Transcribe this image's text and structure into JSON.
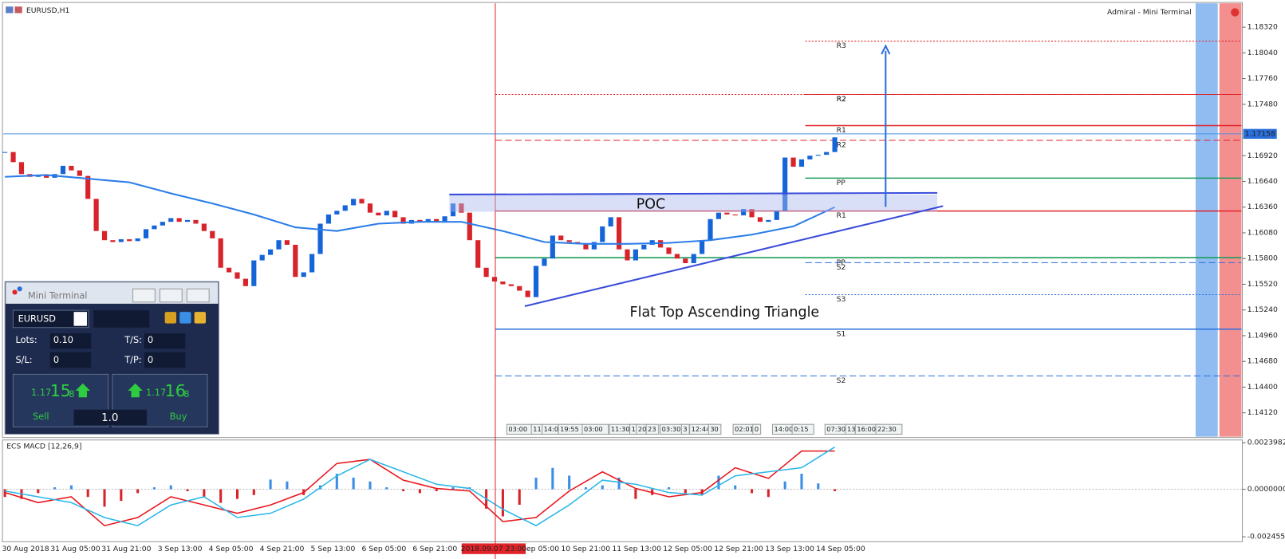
{
  "header": {
    "symbol": "EURUSD,H1",
    "broker": "Admiral - Mini Terminal"
  },
  "price_axis": {
    "ylim": [
      1.1386,
      1.1858
    ],
    "ticks": [
      {
        "value": 1.1832,
        "label": "1.18320"
      },
      {
        "value": 1.1804,
        "label": "1.18040"
      },
      {
        "value": 1.1776,
        "label": "1.17760"
      },
      {
        "value": 1.1748,
        "label": "1.17480"
      },
      {
        "value": 1.1692,
        "label": "1.16920"
      },
      {
        "value": 1.1664,
        "label": "1.16640"
      },
      {
        "value": 1.1636,
        "label": "1.16360"
      },
      {
        "value": 1.1608,
        "label": "1.16080"
      },
      {
        "value": 1.158,
        "label": "1.15800"
      },
      {
        "value": 1.1552,
        "label": "1.15520"
      },
      {
        "value": 1.1524,
        "label": "1.15240"
      },
      {
        "value": 1.1496,
        "label": "1.14960"
      },
      {
        "value": 1.1468,
        "label": "1.14680"
      },
      {
        "value": 1.144,
        "label": "1.14400"
      },
      {
        "value": 1.1412,
        "label": "1.14120"
      }
    ],
    "current": {
      "value": 1.17158,
      "label": "1.17158"
    }
  },
  "candles": {
    "up_color": "#1565d8",
    "down_color": "#d8232a",
    "closes": [
      1.1696,
      1.1685,
      1.1672,
      1.1669,
      1.1671,
      1.1668,
      1.1672,
      1.1681,
      1.1676,
      1.167,
      1.1645,
      1.161,
      1.16,
      1.1598,
      1.1601,
      1.1599,
      1.1602,
      1.1612,
      1.1616,
      1.162,
      1.1624,
      1.162,
      1.1622,
      1.1618,
      1.161,
      1.1602,
      1.157,
      1.1565,
      1.1558,
      1.155,
      1.1578,
      1.1584,
      1.159,
      1.16,
      1.1595,
      1.156,
      1.1565,
      1.1585,
      1.1618,
      1.1628,
      1.1632,
      1.1638,
      1.1645,
      1.164,
      1.163,
      1.1627,
      1.1632,
      1.1625,
      1.1618,
      1.1622,
      1.162,
      1.1623,
      1.162,
      1.1626,
      1.164,
      1.163,
      1.16,
      1.157,
      1.156,
      1.1555,
      1.1552,
      1.155,
      1.1545,
      1.1538,
      1.1572,
      1.158,
      1.1605,
      1.16,
      1.1598,
      1.1596,
      1.159,
      1.1598,
      1.1615,
      1.1625,
      1.159,
      1.1578,
      1.159,
      1.1595,
      1.16,
      1.1592,
      1.1585,
      1.158,
      1.1575,
      1.1585,
      1.16,
      1.1623,
      1.163,
      1.1628,
      1.1627,
      1.1634,
      1.1625,
      1.162,
      1.1622,
      1.1632,
      1.169,
      1.168,
      1.1688,
      1.1692,
      1.1693,
      1.1696,
      1.1712
    ]
  },
  "moving_average": {
    "color": "#2b7de9",
    "values": [
      1.1669,
      1.1671,
      1.1667,
      1.1663,
      1.1651,
      1.164,
      1.1628,
      1.1614,
      1.161,
      1.1618,
      1.162,
      1.162,
      1.161,
      1.1598,
      1.1596,
      1.1596,
      1.1597,
      1.16,
      1.1606,
      1.1615,
      1.1636
    ]
  },
  "levels": {
    "from_line": [
      {
        "label": "R2",
        "value": 1.17587,
        "color": "#e0242a",
        "style": "dotted"
      },
      {
        "label": "R2",
        "value": 1.17087,
        "color": "#e0242a",
        "style": "dashed"
      },
      {
        "label": "R1",
        "value": 1.16318,
        "color": "#e0242a",
        "style": "solid"
      },
      {
        "label": "PP",
        "value": 1.15809,
        "color": "#1a9c5a",
        "style": "solid"
      },
      {
        "label": "S1",
        "value": 1.15031,
        "color": "#2a6fdb",
        "style": "solid"
      },
      {
        "label": "S2",
        "value": 1.14522,
        "color": "#2a6fdb",
        "style": "dashed"
      }
    ],
    "from_mid": [
      {
        "label": "R3",
        "value": 1.18168,
        "color": "#e0242a",
        "style": "dotted"
      },
      {
        "label": "R2",
        "value": 1.17587,
        "color": "#e0242a",
        "style": "dotted"
      },
      {
        "label": "R1",
        "value": 1.17248,
        "color": "#e0242a",
        "style": "solid"
      },
      {
        "label": "PP",
        "value": 1.16676,
        "color": "#1a9c5a",
        "style": "solid"
      },
      {
        "label": "S2",
        "value": 1.15755,
        "color": "#2a6fdb",
        "style": "dashed"
      },
      {
        "label": "S3",
        "value": 1.15407,
        "color": "#2a6fdb",
        "style": "dotted"
      }
    ]
  },
  "annotations": {
    "poc": "POC",
    "pattern": "Flat Top Ascending Triangle"
  },
  "sessions": [
    "03:00",
    "11",
    "14:00",
    "19:55",
    "03:00",
    "11:30",
    "1",
    "20",
    "23",
    "03:30",
    "3",
    "12:44",
    "30",
    "02:01",
    "0",
    "14:00",
    "0:15",
    "07:30",
    "13",
    "16:00",
    "22:30"
  ],
  "macd": {
    "title": "ECS MACD [12,26,9]",
    "ylim": [
      -0.00271,
      0.0025
    ],
    "ticks": [
      {
        "value": 0.0023982,
        "label": "0.0023982"
      },
      {
        "value": 0,
        "label": "0.0000000"
      },
      {
        "value": -0.002455,
        "label": "-0.0024550"
      }
    ],
    "histogram": [
      -0.0004,
      -0.0005,
      -0.0002,
      0.0001,
      0.0002,
      -0.0004,
      -0.0009,
      -0.0006,
      -0.0002,
      0.0001,
      0.0002,
      -0.0001,
      -0.0004,
      -0.0007,
      -0.0005,
      -0.0003,
      0.0005,
      0.0004,
      -0.0003,
      0.0002,
      0.0008,
      0.0006,
      0.0004,
      0.0001,
      -0.0001,
      -0.0002,
      -0.0001,
      0.0001,
      0.0001,
      -0.001,
      -0.0014,
      -0.0008,
      0.0006,
      0.0011,
      0.0007,
      0.0001,
      0.0002,
      0.0006,
      -0.0005,
      -0.0003,
      0.0001,
      -0.0002,
      -0.0003,
      0.0007,
      0.0002,
      -0.0002,
      -0.0004,
      0.0004,
      0.0008,
      0.0003,
      -0.0001
    ],
    "main": [
      -0.00017,
      -0.00069,
      -0.00039,
      -0.00188,
      -0.00146,
      -0.00039,
      -0.00081,
      -0.00124,
      -0.00081,
      -0.00017,
      0.00133,
      0.00154,
      0.00047,
      4e-05,
      -9e-05,
      -0.00167,
      -0.00146,
      -9e-05,
      0.0009,
      4e-05,
      -0.00039,
      -0.00017,
      0.00111,
      0.00056,
      0.00197,
      0.00197
    ],
    "signal": [
      -9e-05,
      -0.00039,
      -0.00069,
      -0.00146,
      -0.00188,
      -0.00081,
      -0.00039,
      -0.00146,
      -0.00124,
      -0.00051,
      0.00069,
      0.00154,
      0.0009,
      0.00026,
      4e-05,
      -0.00103,
      -0.00188,
      -0.00081,
      0.00047,
      0.00026,
      -0.00017,
      -0.0003,
      0.00069,
      0.0009,
      0.00111,
      0.00218
    ],
    "up_color": "#3a8ee6",
    "down_color": "#d8232a",
    "main_color": "#e8141c",
    "signal_color": "#2ab7e8"
  },
  "time_axis": {
    "cursor": "2018.09.07 23:00",
    "labels": [
      "30 Aug 2018",
      "31 Aug 05:00",
      "31 Aug 21:00",
      "3 Sep 13:00",
      "4 Sep 05:00",
      "4 Sep 21:00",
      "5 Sep 13:00",
      "6 Sep 05:00",
      "6 Sep 21:00",
      "Sep 05:00",
      "10 Sep 21:00",
      "11 Sep 13:00",
      "12 Sep 05:00",
      "12 Sep 21:00",
      "13 Sep 13:00",
      "14 Sep 05:00"
    ]
  },
  "mini_terminal": {
    "title": "Mini Terminal",
    "symbol": "EURUSD",
    "lots_label": "Lots:",
    "lots": "0.10",
    "ts_label": "T/S:",
    "ts": "0",
    "sl_label": "S/L:",
    "sl": "0",
    "tp_label": "T/P:",
    "tp": "0",
    "sell": {
      "prefix": "1.17",
      "big": "15",
      "suffix": "8",
      "label": "Sell"
    },
    "buy": {
      "prefix": "1.17",
      "big": "16",
      "suffix": "8",
      "label": "Buy"
    },
    "volume": "1.0"
  }
}
